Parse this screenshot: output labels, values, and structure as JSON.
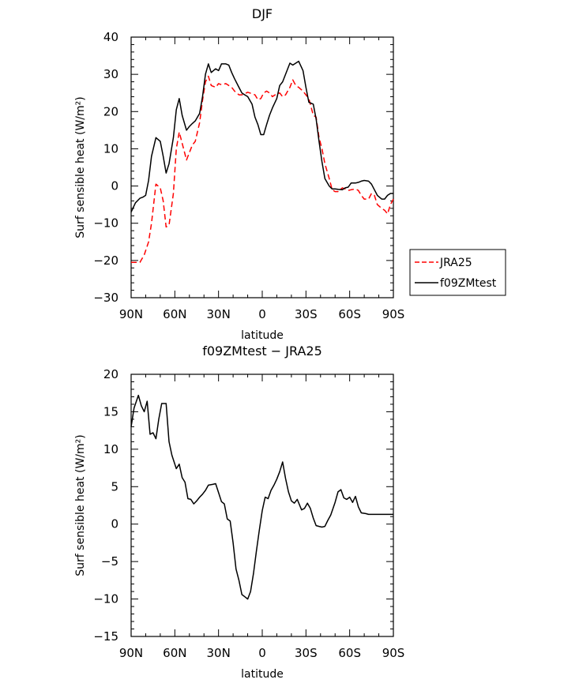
{
  "chart_data": [
    {
      "type": "line",
      "title": "DJF",
      "xlabel": "latitude",
      "ylabel": "Surf sensible heat (W/m²)",
      "ylim": [
        -30,
        40
      ],
      "xlim": [
        -90,
        90
      ],
      "x_direction": "north-to-south",
      "x_ticks": [
        {
          "value": -90,
          "label": "90N"
        },
        {
          "value": -60,
          "label": "60N"
        },
        {
          "value": -30,
          "label": "30N"
        },
        {
          "value": 0,
          "label": "0"
        },
        {
          "value": 30,
          "label": "30S"
        },
        {
          "value": 60,
          "label": "60S"
        },
        {
          "value": 90,
          "label": "90S"
        }
      ],
      "y_ticks": [
        {
          "value": 40,
          "label": "40"
        },
        {
          "value": 30,
          "label": "30"
        },
        {
          "value": 20,
          "label": "20"
        },
        {
          "value": 10,
          "label": "10"
        },
        {
          "value": 0,
          "label": "0"
        },
        {
          "value": -10,
          "label": "−10"
        },
        {
          "value": -20,
          "label": "−20"
        },
        {
          "value": -30,
          "label": "−30"
        }
      ],
      "grid": false,
      "legend": "right",
      "series": [
        {
          "name": "JRA25",
          "color": "#ff0000",
          "dash": true,
          "x": [
            -90,
            -87,
            -84,
            -81,
            -78,
            -76,
            -73,
            -70,
            -68,
            -66,
            -64,
            -61,
            -59,
            -57,
            -55,
            -52,
            -50,
            -48,
            -46,
            -43,
            -41,
            -39,
            -37,
            -35,
            -32,
            -30,
            -28,
            -25,
            -23,
            -21,
            -19,
            -16,
            -14,
            -12,
            -10,
            -7,
            -5,
            -3,
            -1,
            1,
            3,
            5,
            7,
            10,
            12,
            14,
            16,
            19,
            21,
            23,
            25,
            28,
            30,
            32,
            35,
            37,
            39,
            41,
            43,
            46,
            48,
            50,
            52,
            55,
            57,
            59,
            61,
            64,
            66,
            68,
            70,
            73,
            75,
            77,
            79,
            82,
            84,
            86,
            88,
            90
          ],
          "y": [
            -20.5,
            -20.5,
            -20.5,
            -18.5,
            -15,
            -10,
            0.5,
            -0.5,
            -4,
            -11,
            -10.5,
            -2,
            10,
            14.5,
            11.5,
            7,
            9,
            11,
            12,
            17,
            23,
            28,
            29.5,
            27,
            26.5,
            27.5,
            27.2,
            27.5,
            27,
            26.5,
            25.5,
            24.5,
            24.5,
            24.8,
            25.2,
            24.8,
            24.5,
            23.2,
            23.5,
            25,
            25.5,
            25,
            24,
            24.8,
            25,
            24,
            24.5,
            26.5,
            28.5,
            27,
            26.5,
            25.5,
            24.5,
            23.5,
            19,
            18.5,
            13,
            10,
            6,
            2,
            -1,
            -1.5,
            -1.5,
            -0.5,
            -0.8,
            -1.2,
            -1,
            -0.8,
            -1.2,
            -2.5,
            -3.5,
            -3.5,
            -2,
            -2.5,
            -5,
            -6,
            -6.5,
            -7.5,
            -5,
            -3.5
          ]
        },
        {
          "name": "f09ZMtest",
          "color": "#000000",
          "dash": false,
          "x": [
            -90,
            -87,
            -84,
            -82,
            -80,
            -78,
            -76,
            -73,
            -70,
            -68,
            -66,
            -64,
            -61,
            -59,
            -57,
            -55,
            -52,
            -50,
            -48,
            -46,
            -43,
            -41,
            -39,
            -37,
            -35,
            -32,
            -30,
            -28,
            -25,
            -23,
            -21,
            -19,
            -16,
            -14,
            -12,
            -10,
            -7,
            -5,
            -3,
            -1,
            1,
            3,
            5,
            7,
            10,
            12,
            14,
            16,
            19,
            21,
            23,
            25,
            28,
            30,
            32,
            35,
            37,
            39,
            41,
            43,
            46,
            48,
            50,
            52,
            55,
            57,
            59,
            61,
            64,
            66,
            68,
            70,
            73,
            75,
            77,
            79,
            82,
            84,
            86,
            88,
            90
          ],
          "y": [
            -7,
            -4.5,
            -3.3,
            -3,
            -2.5,
            1.5,
            8,
            13,
            12,
            8,
            3.5,
            6,
            13,
            20.5,
            23.5,
            19,
            15,
            16,
            16.8,
            17.5,
            19.5,
            24,
            30,
            32.8,
            30.5,
            31.5,
            31,
            32.8,
            32.8,
            32.5,
            30.5,
            28.8,
            26.5,
            25,
            24.5,
            24,
            22,
            18.5,
            16.5,
            13.8,
            13.8,
            16.5,
            19,
            21,
            23.5,
            27,
            28,
            30,
            33,
            32.5,
            33,
            33.5,
            31,
            26.5,
            22.5,
            22,
            18,
            12,
            6.5,
            2,
            0,
            -0.8,
            -0.8,
            -0.9,
            -1,
            -0.5,
            -0.3,
            0.8,
            0.8,
            1,
            1.3,
            1.5,
            1.3,
            0.5,
            -1,
            -2.5,
            -3.5,
            -3.5,
            -2.5,
            -2,
            -2
          ]
        }
      ]
    },
    {
      "type": "line",
      "title": "f09ZMtest − JRA25",
      "xlabel": "latitude",
      "ylabel": "Surf sensible heat (W/m²)",
      "ylim": [
        -15,
        20
      ],
      "xlim": [
        -90,
        90
      ],
      "x_direction": "north-to-south",
      "x_ticks": [
        {
          "value": -90,
          "label": "90N"
        },
        {
          "value": -60,
          "label": "60N"
        },
        {
          "value": -30,
          "label": "30N"
        },
        {
          "value": 0,
          "label": "0"
        },
        {
          "value": 30,
          "label": "30S"
        },
        {
          "value": 60,
          "label": "60S"
        },
        {
          "value": 90,
          "label": "90S"
        }
      ],
      "y_ticks": [
        {
          "value": 20,
          "label": "20"
        },
        {
          "value": 15,
          "label": "15"
        },
        {
          "value": 10,
          "label": "10"
        },
        {
          "value": 5,
          "label": "5"
        },
        {
          "value": 0,
          "label": "0"
        },
        {
          "value": -5,
          "label": "−5"
        },
        {
          "value": -10,
          "label": "−10"
        },
        {
          "value": -15,
          "label": "−15"
        }
      ],
      "grid": false,
      "series": [
        {
          "color": "#000000",
          "dash": false,
          "x": [
            -90,
            -88,
            -85,
            -83,
            -81,
            -79,
            -77,
            -75,
            -73,
            -71,
            -69,
            -66,
            -64,
            -62,
            -59,
            -57,
            -55,
            -53,
            -51,
            -49,
            -47,
            -45,
            -43,
            -41,
            -39,
            -37,
            -34,
            -32,
            -30,
            -28,
            -26,
            -24,
            -22,
            -20,
            -18,
            -16,
            -14,
            -12,
            -10,
            -8,
            -6,
            -4,
            -2,
            0,
            2,
            4,
            6,
            8,
            10,
            12,
            14,
            16,
            18,
            20,
            22,
            24,
            27,
            29,
            31,
            33,
            35,
            37,
            39,
            41,
            43,
            45,
            47,
            50,
            52,
            54,
            56,
            58,
            60,
            62,
            64,
            66,
            68,
            71,
            73,
            75,
            77,
            79,
            81,
            83,
            85,
            87,
            90
          ],
          "y": [
            13,
            15.5,
            17.2,
            15.8,
            15,
            16.4,
            12,
            12.2,
            11.4,
            14,
            16.1,
            16.1,
            11,
            9.2,
            7.4,
            8,
            6.2,
            5.6,
            3.4,
            3.3,
            2.7,
            3.1,
            3.6,
            4,
            4.5,
            5.2,
            5.3,
            5.4,
            4.2,
            3,
            2.7,
            0.7,
            0.4,
            -2.5,
            -6,
            -7.5,
            -9.4,
            -9.7,
            -10,
            -9,
            -6.6,
            -3.6,
            -0.8,
            1.8,
            3.6,
            3.4,
            4.5,
            5.2,
            6,
            7,
            8.3,
            6.1,
            4.3,
            3.1,
            2.8,
            3.3,
            1.9,
            2.1,
            2.8,
            2.1,
            0.8,
            -0.2,
            -0.3,
            -0.4,
            -0.3,
            0.5,
            1.2,
            2.9,
            4.3,
            4.6,
            3.5,
            3.3,
            3.6,
            2.9,
            3.7,
            2.3,
            1.5,
            1.4,
            1.3,
            1.3,
            1.3,
            1.3,
            1.3,
            1.3,
            1.3,
            1.3,
            1.3
          ]
        }
      ]
    }
  ]
}
